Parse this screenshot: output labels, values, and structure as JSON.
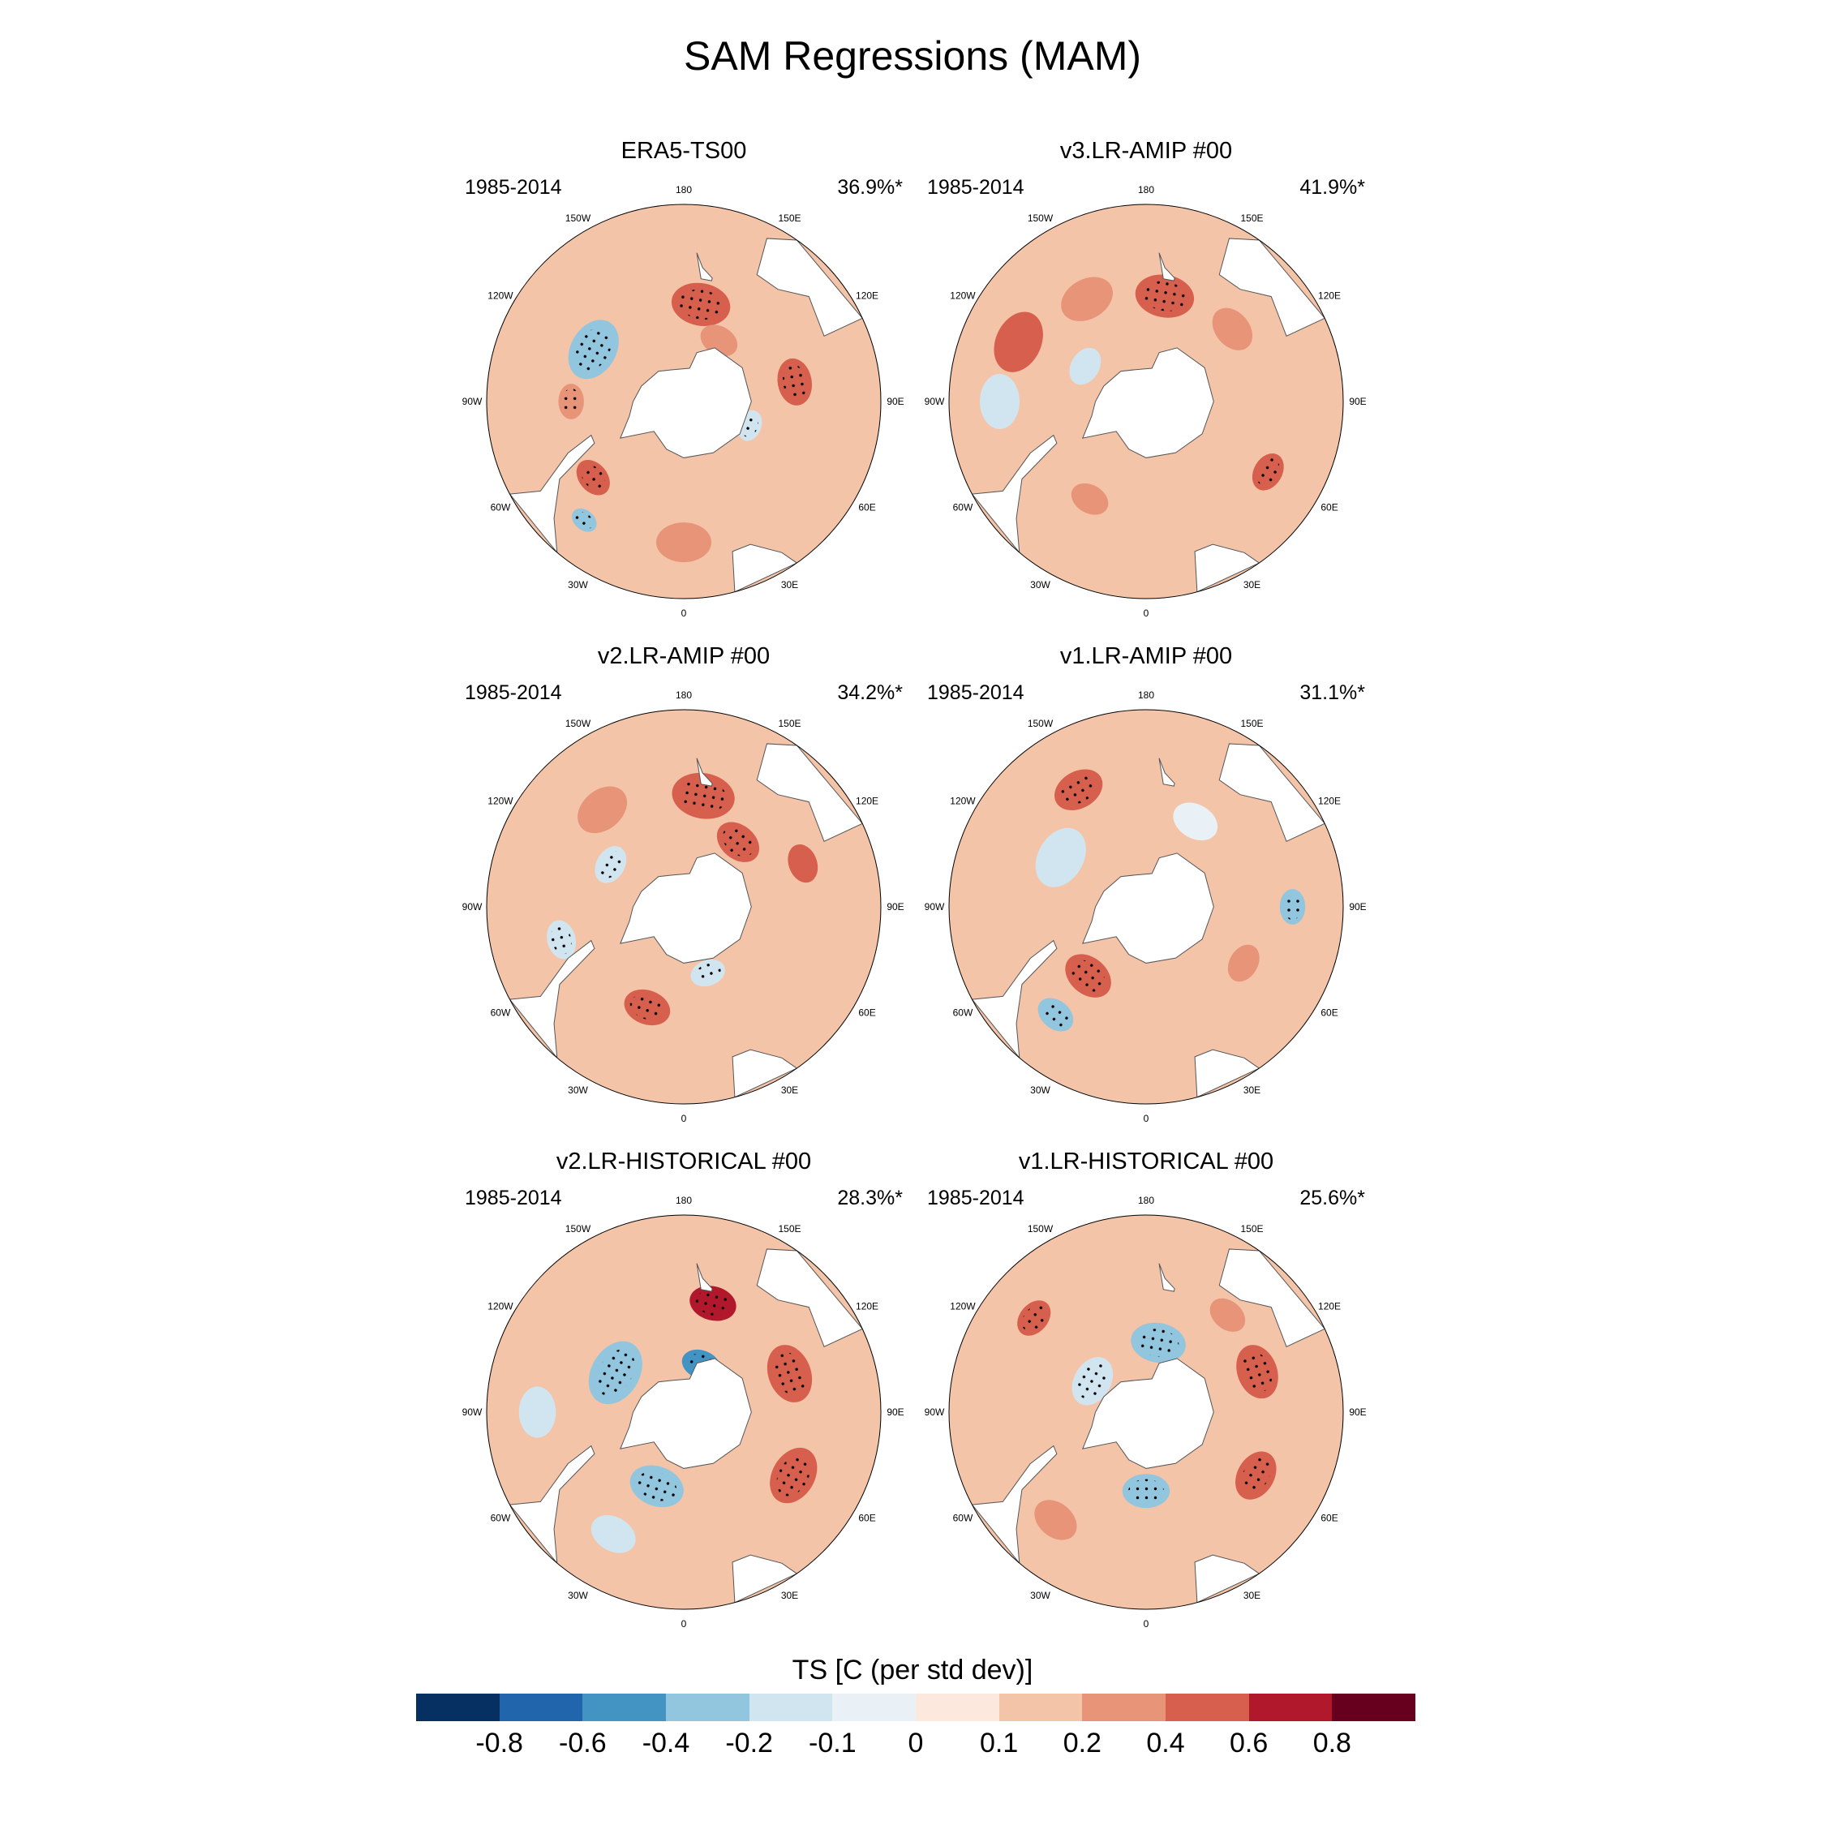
{
  "figure": {
    "title": "SAM Regressions (MAM)",
    "panels": [
      {
        "title": "ERA5-TS00",
        "period": "1985-2014",
        "variance": "36.9%*",
        "blobs": [
          {
            "lon": -120,
            "lat": -53,
            "r": 0.16,
            "level": -0.4,
            "stipple": true
          },
          {
            "lon": 170,
            "lat": -55,
            "r": 0.15,
            "level": 0.4,
            "stipple": true
          },
          {
            "lon": 100,
            "lat": -50,
            "r": 0.12,
            "level": 0.4,
            "stipple": true
          },
          {
            "lon": -50,
            "lat": -48,
            "r": 0.1,
            "level": 0.4,
            "stipple": true
          },
          {
            "lon": -40,
            "lat": -35,
            "r": 0.07,
            "level": -0.4,
            "stipple": true
          },
          {
            "lon": -90,
            "lat": -50,
            "r": 0.09,
            "level": 0.2,
            "stipple": true
          },
          {
            "lon": 0,
            "lat": -40,
            "r": 0.14,
            "level": 0.2,
            "stipple": false
          },
          {
            "lon": 70,
            "lat": -65,
            "r": 0.08,
            "level": -0.2,
            "stipple": true
          },
          {
            "lon": 150,
            "lat": -65,
            "r": 0.1,
            "level": 0.2,
            "stipple": false
          }
        ]
      },
      {
        "title": "v3.LR-AMIP  #00",
        "period": "1985-2014",
        "variance": "41.9%*",
        "blobs": [
          {
            "lon": -115,
            "lat": -40,
            "r": 0.16,
            "level": 0.4,
            "stipple": false
          },
          {
            "lon": 170,
            "lat": -52,
            "r": 0.15,
            "level": 0.4,
            "stipple": true
          },
          {
            "lon": -150,
            "lat": -48,
            "r": 0.14,
            "level": 0.2,
            "stipple": false
          },
          {
            "lon": 60,
            "lat": -40,
            "r": 0.1,
            "level": 0.4,
            "stipple": true
          },
          {
            "lon": -30,
            "lat": -50,
            "r": 0.1,
            "level": 0.2,
            "stipple": false
          },
          {
            "lon": -120,
            "lat": -65,
            "r": 0.1,
            "level": -0.2,
            "stipple": false
          },
          {
            "lon": -90,
            "lat": -38,
            "r": 0.14,
            "level": -0.2,
            "stipple": false
          },
          {
            "lon": 130,
            "lat": -50,
            "r": 0.12,
            "level": 0.2,
            "stipple": false
          }
        ]
      },
      {
        "title": "v2.LR-AMIP  #00",
        "period": "1985-2014",
        "variance": "34.2%*",
        "blobs": [
          {
            "lon": -20,
            "lat": -52,
            "r": 0.12,
            "level": 0.4,
            "stipple": true
          },
          {
            "lon": 170,
            "lat": -50,
            "r": 0.16,
            "level": 0.4,
            "stipple": true
          },
          {
            "lon": 140,
            "lat": -60,
            "r": 0.12,
            "level": 0.4,
            "stipple": true
          },
          {
            "lon": -140,
            "lat": -45,
            "r": 0.14,
            "level": 0.2,
            "stipple": false
          },
          {
            "lon": -120,
            "lat": -60,
            "r": 0.1,
            "level": -0.2,
            "stipple": true
          },
          {
            "lon": 20,
            "lat": -65,
            "r": 0.09,
            "level": -0.2,
            "stipple": true
          },
          {
            "lon": 110,
            "lat": -45,
            "r": 0.1,
            "level": 0.4,
            "stipple": false
          },
          {
            "lon": -75,
            "lat": -45,
            "r": 0.1,
            "level": -0.2,
            "stipple": true
          }
        ]
      },
      {
        "title": "v1.LR-AMIP  #00",
        "period": "1985-2014",
        "variance": "31.1%*",
        "blobs": [
          {
            "lon": -40,
            "lat": -40,
            "r": 0.1,
            "level": -0.4,
            "stipple": true
          },
          {
            "lon": -40,
            "lat": -58,
            "r": 0.13,
            "level": 0.4,
            "stipple": true
          },
          {
            "lon": -150,
            "lat": -42,
            "r": 0.13,
            "level": 0.4,
            "stipple": true
          },
          {
            "lon": -120,
            "lat": -55,
            "r": 0.16,
            "level": -0.2,
            "stipple": false
          },
          {
            "lon": 90,
            "lat": -38,
            "r": 0.09,
            "level": -0.4,
            "stipple": true
          },
          {
            "lon": 60,
            "lat": -50,
            "r": 0.1,
            "level": 0.2,
            "stipple": false
          },
          {
            "lon": 150,
            "lat": -55,
            "r": 0.12,
            "level": -0.1,
            "stipple": false
          }
        ]
      },
      {
        "title": "v2.LR-HISTORICAL  #00",
        "period": "1985-2014",
        "variance": "28.3%*",
        "blobs": [
          {
            "lon": 60,
            "lat": -45,
            "r": 0.15,
            "level": 0.4,
            "stipple": true
          },
          {
            "lon": 110,
            "lat": -50,
            "r": 0.15,
            "level": 0.4,
            "stipple": true
          },
          {
            "lon": 165,
            "lat": -50,
            "r": 0.12,
            "level": 0.6,
            "stipple": true
          },
          {
            "lon": -20,
            "lat": -62,
            "r": 0.14,
            "level": -0.4,
            "stipple": true
          },
          {
            "lon": -120,
            "lat": -62,
            "r": 0.17,
            "level": -0.4,
            "stipple": true
          },
          {
            "lon": 160,
            "lat": -72,
            "r": 0.1,
            "level": -0.6,
            "stipple": true
          },
          {
            "lon": -90,
            "lat": -38,
            "r": 0.13,
            "level": -0.2,
            "stipple": false
          },
          {
            "lon": -30,
            "lat": -40,
            "r": 0.12,
            "level": -0.2,
            "stipple": false
          }
        ]
      },
      {
        "title": "v1.LR-HISTORICAL  #00",
        "period": "1985-2014",
        "variance": "25.6%*",
        "blobs": [
          {
            "lon": 0,
            "lat": -62,
            "r": 0.12,
            "level": -0.4,
            "stipple": true
          },
          {
            "lon": 170,
            "lat": -65,
            "r": 0.14,
            "level": -0.4,
            "stipple": true
          },
          {
            "lon": -120,
            "lat": -68,
            "r": 0.13,
            "level": -0.2,
            "stipple": true
          },
          {
            "lon": 60,
            "lat": -45,
            "r": 0.13,
            "level": 0.4,
            "stipple": true
          },
          {
            "lon": 110,
            "lat": -48,
            "r": 0.14,
            "level": 0.4,
            "stipple": true
          },
          {
            "lon": -40,
            "lat": -40,
            "r": 0.12,
            "level": 0.2,
            "stipple": false
          },
          {
            "lon": -130,
            "lat": -38,
            "r": 0.1,
            "level": 0.4,
            "stipple": true
          },
          {
            "lon": 140,
            "lat": -45,
            "r": 0.1,
            "level": 0.2,
            "stipple": false
          }
        ]
      }
    ]
  },
  "map": {
    "lon_labels": [
      {
        "lon": 0,
        "text": "0"
      },
      {
        "lon": 30,
        "text": "30E"
      },
      {
        "lon": 60,
        "text": "60E"
      },
      {
        "lon": 90,
        "text": "90E"
      },
      {
        "lon": 120,
        "text": "120E"
      },
      {
        "lon": 150,
        "text": "150E"
      },
      {
        "lon": 180,
        "text": "180"
      },
      {
        "lon": -150,
        "text": "150W"
      },
      {
        "lon": -120,
        "text": "120W"
      },
      {
        "lon": -90,
        "text": "90W"
      },
      {
        "lon": -60,
        "text": "60W"
      },
      {
        "lon": -30,
        "text": "30W"
      }
    ],
    "background_level": 0.1,
    "ring_color": "#f4c4a8"
  },
  "colorbar": {
    "title": "TS [C (per std dev)]",
    "colors": [
      "#053061",
      "#2166ac",
      "#4393c3",
      "#92c5de",
      "#d1e5f0",
      "#eaf1f6",
      "#fde8de",
      "#f4c4a8",
      "#e79479",
      "#d6604d",
      "#b2182b",
      "#67001f"
    ],
    "labels": [
      "-0.8",
      "-0.6",
      "-0.4",
      "-0.2",
      "-0.1",
      "0",
      "0.1",
      "0.2",
      "0.4",
      "0.6",
      "0.8"
    ],
    "levels": [
      -0.8,
      -0.6,
      -0.4,
      -0.2,
      -0.1,
      0,
      0.1,
      0.2,
      0.4,
      0.6,
      0.8
    ]
  }
}
